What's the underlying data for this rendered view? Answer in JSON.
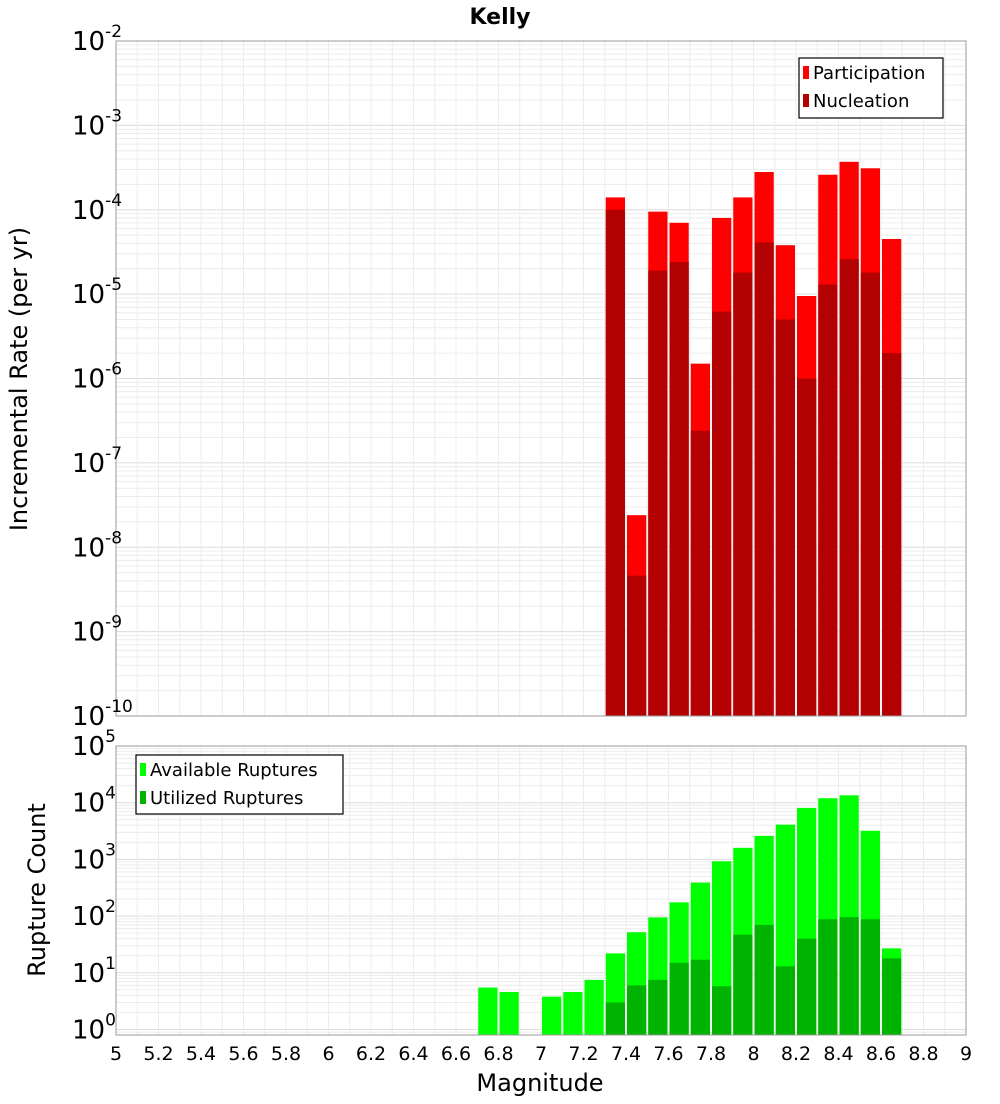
{
  "chart_data": [
    {
      "type": "bar",
      "title": "Kelly",
      "ylabel": "Incremental Rate (per yr)",
      "xlabel": "",
      "yscale": "log",
      "ylim": [
        1e-10,
        0.01
      ],
      "xlim": [
        5,
        9
      ],
      "yticks": [
        {
          "base": "10",
          "exp": "-10",
          "value": 1e-10
        },
        {
          "base": "10",
          "exp": "-9",
          "value": 1e-09
        },
        {
          "base": "10",
          "exp": "-8",
          "value": 1e-08
        },
        {
          "base": "10",
          "exp": "-7",
          "value": 1e-07
        },
        {
          "base": "10",
          "exp": "-6",
          "value": 1e-06
        },
        {
          "base": "10",
          "exp": "-5",
          "value": 1e-05
        },
        {
          "base": "10",
          "exp": "-4",
          "value": 0.0001
        },
        {
          "base": "10",
          "exp": "-3",
          "value": 0.001
        },
        {
          "base": "10",
          "exp": "-2",
          "value": 0.01
        }
      ],
      "legend_position": "top-right",
      "grid": true,
      "x": [
        7.35,
        7.45,
        7.55,
        7.65,
        7.75,
        7.85,
        7.95,
        8.05,
        8.15,
        8.25,
        8.35,
        8.45,
        8.55,
        8.65
      ],
      "series": [
        {
          "name": "Participation",
          "color": "#ff0000",
          "values": [
            0.00014,
            2.4e-08,
            9.5e-05,
            7e-05,
            1.5e-06,
            8e-05,
            0.00014,
            0.00028,
            3.8e-05,
            9.5e-06,
            0.00026,
            0.00037,
            0.00031,
            4.5e-05
          ]
        },
        {
          "name": "Nucleation",
          "color": "#b30000",
          "values": [
            0.0001,
            4.6e-09,
            1.9e-05,
            2.4e-05,
            2.4e-07,
            6.2e-06,
            1.8e-05,
            4.1e-05,
            5e-06,
            1e-06,
            1.3e-05,
            2.6e-05,
            1.8e-05,
            2e-06
          ]
        }
      ]
    },
    {
      "type": "bar",
      "ylabel": "Rupture Count",
      "xlabel": "Magnitude",
      "yscale": "log",
      "ylim": [
        0.8,
        100000.0
      ],
      "xlim": [
        5,
        9
      ],
      "yticks": [
        {
          "base": "10",
          "exp": "0",
          "value": 1
        },
        {
          "base": "10",
          "exp": "1",
          "value": 10
        },
        {
          "base": "10",
          "exp": "2",
          "value": 100
        },
        {
          "base": "10",
          "exp": "3",
          "value": 1000
        },
        {
          "base": "10",
          "exp": "4",
          "value": 10000
        },
        {
          "base": "10",
          "exp": "5",
          "value": 100000
        }
      ],
      "xticks": [
        "5",
        "5.2",
        "5.4",
        "5.6",
        "5.8",
        "6",
        "6.2",
        "6.4",
        "6.6",
        "6.8",
        "7",
        "7.2",
        "7.4",
        "7.6",
        "7.8",
        "8",
        "8.2",
        "8.4",
        "8.6",
        "8.8",
        "9"
      ],
      "legend_position": "top-left",
      "grid": true,
      "x": [
        6.75,
        6.85,
        7.05,
        7.15,
        7.25,
        7.35,
        7.45,
        7.55,
        7.65,
        7.75,
        7.85,
        7.95,
        8.05,
        8.15,
        8.25,
        8.35,
        8.45,
        8.55,
        8.65
      ],
      "series": [
        {
          "name": "Available Ruptures",
          "color": "#00ff00",
          "values": [
            5.5,
            4.6,
            3.8,
            4.6,
            7.5,
            22,
            52,
            95,
            175,
            390,
            930,
            1600,
            2600,
            4100,
            8100,
            12000,
            13500,
            3200,
            27
          ]
        },
        {
          "name": "Utilized Ruptures",
          "color": "#00b300",
          "values": [
            null,
            null,
            null,
            null,
            null,
            3,
            6,
            7.5,
            15,
            17,
            5.8,
            47,
            70,
            13,
            40,
            88,
            96,
            88,
            18
          ]
        }
      ]
    }
  ]
}
